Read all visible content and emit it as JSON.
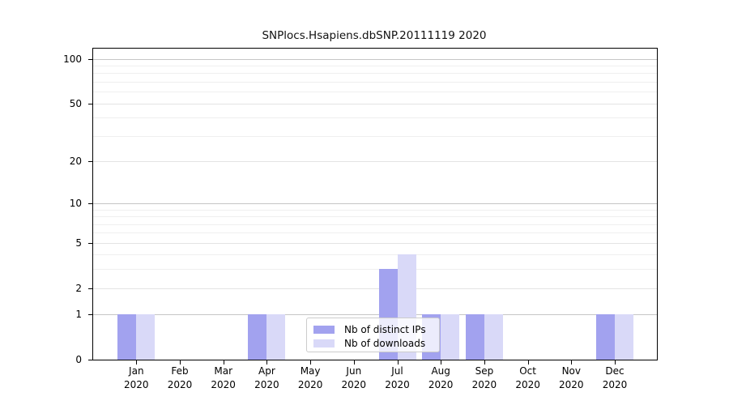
{
  "title": "SNPlocs.Hsapiens.dbSNP.20111119 2020",
  "legend": {
    "items": [
      {
        "label": "Nb of distinct IPs",
        "color": "#a2a2ef"
      },
      {
        "label": "Nb of downloads",
        "color": "#d9d9f8"
      }
    ]
  },
  "colors": {
    "bar_ips": "#a2a2ef",
    "bar_downloads": "#d9d9f8",
    "grid_decade": "#c6c6c6",
    "grid_major": "#e4e4e4",
    "grid_minor": "#efefef",
    "axis": "#000000",
    "background": "#ffffff"
  },
  "chart_data": {
    "type": "bar",
    "title": "SNPlocs.Hsapiens.dbSNP.20111119 2020",
    "x_categories": [
      {
        "month": "Jan",
        "year": "2020"
      },
      {
        "month": "Feb",
        "year": "2020"
      },
      {
        "month": "Mar",
        "year": "2020"
      },
      {
        "month": "Apr",
        "year": "2020"
      },
      {
        "month": "May",
        "year": "2020"
      },
      {
        "month": "Jun",
        "year": "2020"
      },
      {
        "month": "Jul",
        "year": "2020"
      },
      {
        "month": "Aug",
        "year": "2020"
      },
      {
        "month": "Sep",
        "year": "2020"
      },
      {
        "month": "Oct",
        "year": "2020"
      },
      {
        "month": "Nov",
        "year": "2020"
      },
      {
        "month": "Dec",
        "year": "2020"
      }
    ],
    "series": [
      {
        "name": "Nb of distinct IPs",
        "values": [
          1,
          0,
          0,
          1,
          0,
          0,
          3,
          1,
          1,
          0,
          0,
          1
        ]
      },
      {
        "name": "Nb of downloads",
        "values": [
          1,
          0,
          0,
          1,
          0,
          0,
          4,
          1,
          1,
          0,
          0,
          1
        ]
      }
    ],
    "y_scale": "log10(value+1)",
    "y_ticks": [
      0,
      1,
      2,
      5,
      10,
      20,
      50,
      100
    ],
    "y_minor_gridlines": [
      3,
      4,
      6,
      7,
      8,
      9,
      30,
      40,
      60,
      70,
      80,
      90
    ],
    "y_decade_gridlines": [
      1,
      10,
      100
    ],
    "ylim": [
      0,
      100
    ],
    "grid": true,
    "legend_position": "lower-center-inside"
  }
}
